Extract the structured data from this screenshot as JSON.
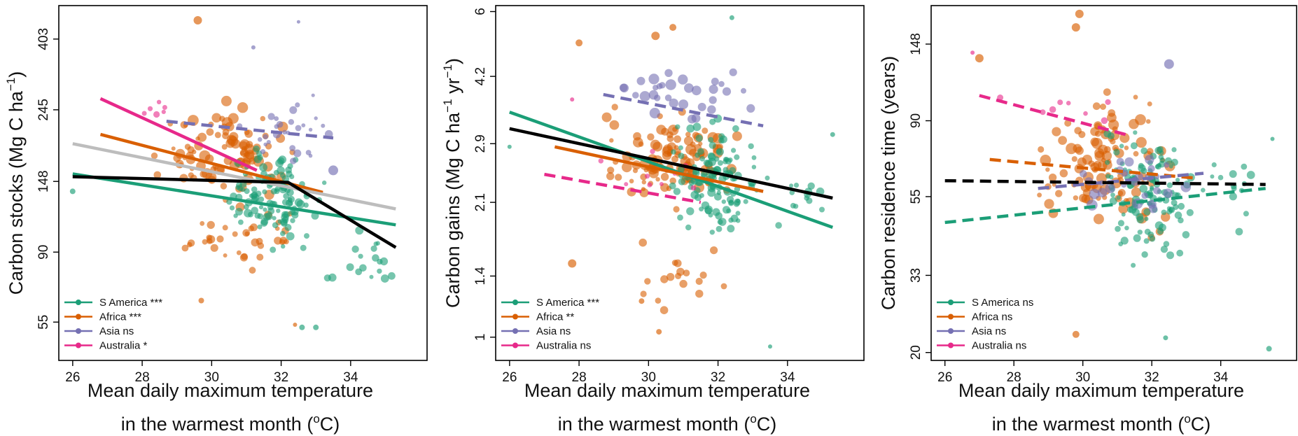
{
  "colors": {
    "S America": "#1b9e77",
    "Africa": "#d95f02",
    "Asia": "#7570b3",
    "Australia": "#e7298a",
    "pantropical": "#000000",
    "pantropical_linear": "#bdbdbd"
  },
  "chart_data": [
    {
      "type": "scatter",
      "ylabel_main": "Carbon stocks (Mg C ha",
      "ylabel_sup": "−1",
      "ylabel_tail": ")",
      "xlabel_line1": "Mean daily maximum temperature",
      "xlabel_line2_pre": "in the warmest month (",
      "xlabel_line2_sup": "o",
      "xlabel_line2_post": "C)",
      "y_scale": "log",
      "xlim": [
        25.6,
        36.2
      ],
      "ylim": [
        42,
        510
      ],
      "x_ticks": [
        "26",
        "28",
        "30",
        "32",
        "34"
      ],
      "y_ticks": [
        "55",
        "90",
        "148",
        "245",
        "403"
      ],
      "legend": [
        {
          "region": "S America",
          "label": "S America ***"
        },
        {
          "region": "Africa",
          "label": "Africa ***"
        },
        {
          "region": "Asia",
          "label": "Asia ns"
        },
        {
          "region": "Australia",
          "label": "Australia *"
        }
      ],
      "fits": [
        {
          "region": "S America",
          "style": "solid",
          "points": [
            [
              26,
              156
            ],
            [
              35.3,
              109
            ]
          ]
        },
        {
          "region": "Africa",
          "style": "solid",
          "points": [
            [
              26.8,
              206
            ],
            [
              33.2,
              137
            ]
          ]
        },
        {
          "region": "Asia",
          "style": "dashed",
          "points": [
            [
              28.7,
              226
            ],
            [
              33.5,
              201
            ]
          ]
        },
        {
          "region": "Australia",
          "style": "solid",
          "points": [
            [
              26.8,
              265
            ],
            [
              31.3,
              160
            ]
          ]
        },
        {
          "region": "pantropical_linear",
          "style": "solid",
          "points": [
            [
              26,
              193
            ],
            [
              35.3,
              122
            ]
          ]
        },
        {
          "region": "pantropical",
          "style": "solid",
          "points": [
            [
              26,
              153
            ],
            [
              32.2,
              147
            ],
            [
              35.3,
              93
            ]
          ]
        }
      ],
      "clusters": [
        {
          "region": "Africa",
          "x": [
            28.2,
            32.5
          ],
          "y": [
            120,
            280
          ],
          "n": 95,
          "size": [
            3,
            8
          ]
        },
        {
          "region": "Africa",
          "x": [
            29,
            33
          ],
          "y": [
            75,
            130
          ],
          "n": 35,
          "size": [
            3,
            6
          ]
        },
        {
          "region": "S America",
          "x": [
            30.3,
            33.3
          ],
          "y": [
            85,
            220
          ],
          "n": 120,
          "size": [
            3,
            6
          ]
        },
        {
          "region": "S America",
          "x": [
            33.2,
            35.6
          ],
          "y": [
            65,
            120
          ],
          "n": 18,
          "size": [
            3,
            6
          ]
        },
        {
          "region": "Asia",
          "x": [
            30.5,
            33.8
          ],
          "y": [
            150,
            300
          ],
          "n": 28,
          "size": [
            2.5,
            6
          ]
        },
        {
          "region": "Australia",
          "x": [
            27.2,
            29
          ],
          "y": [
            210,
            280
          ],
          "n": 6,
          "size": [
            3,
            5
          ]
        }
      ],
      "points": [
        {
          "region": "Africa",
          "x": 29.6,
          "y": 460,
          "r": 6
        },
        {
          "region": "Asia",
          "x": 32.5,
          "y": 455,
          "r": 2.5
        },
        {
          "region": "Asia",
          "x": 31.2,
          "y": 380,
          "r": 3
        },
        {
          "region": "S America",
          "x": 26,
          "y": 138,
          "r": 4
        },
        {
          "region": "S America",
          "x": 32.6,
          "y": 53,
          "r": 4
        },
        {
          "region": "S America",
          "x": 33,
          "y": 53,
          "r": 4
        },
        {
          "region": "Africa",
          "x": 32.4,
          "y": 54,
          "r": 3
        },
        {
          "region": "Africa",
          "x": 29.7,
          "y": 64,
          "r": 4
        },
        {
          "region": "Asia",
          "x": 33.5,
          "y": 160,
          "r": 7
        }
      ]
    },
    {
      "type": "scatter",
      "ylabel_main": "Carbon gains (Mg C ha",
      "ylabel_sup": "−1",
      "ylabel_mid": " yr",
      "ylabel_sup2": "−1",
      "ylabel_tail": ")",
      "xlabel_line1": "Mean daily maximum temperature",
      "xlabel_line2_pre": "in the warmest month (",
      "xlabel_line2_sup": "o",
      "xlabel_line2_post": "C)",
      "y_scale": "log",
      "xlim": [
        25.6,
        36.2
      ],
      "ylim": [
        0.88,
        6.2
      ],
      "x_ticks": [
        "26",
        "28",
        "30",
        "32",
        "34"
      ],
      "y_ticks": [
        "1",
        "1.4",
        "2.1",
        "2.9",
        "4.2",
        "6"
      ],
      "legend": [
        {
          "region": "S America",
          "label": "S America ***"
        },
        {
          "region": "Africa",
          "label": "Africa **"
        },
        {
          "region": "Asia",
          "label": "Asia ns"
        },
        {
          "region": "Australia",
          "label": "Australia ns"
        }
      ],
      "fits": [
        {
          "region": "S America",
          "style": "solid",
          "points": [
            [
              26,
              3.45
            ],
            [
              35.3,
              1.83
            ]
          ]
        },
        {
          "region": "Africa",
          "style": "solid",
          "points": [
            [
              27.3,
              2.85
            ],
            [
              33.3,
              2.23
            ]
          ]
        },
        {
          "region": "Asia",
          "style": "dashed",
          "points": [
            [
              28.7,
              3.8
            ],
            [
              33.3,
              3.2
            ]
          ]
        },
        {
          "region": "Australia",
          "style": "dashed",
          "points": [
            [
              27,
              2.45
            ],
            [
              31.5,
              2.1
            ]
          ]
        },
        {
          "region": "pantropical",
          "style": "solid",
          "points": [
            [
              26,
              3.15
            ],
            [
              35.3,
              2.15
            ]
          ]
        }
      ],
      "clusters": [
        {
          "region": "Africa",
          "x": [
            28.3,
            32.8
          ],
          "y": [
            1.9,
            3.8
          ],
          "n": 110,
          "size": [
            3,
            8
          ]
        },
        {
          "region": "Africa",
          "x": [
            29,
            32.5
          ],
          "y": [
            1.05,
            1.9
          ],
          "n": 18,
          "size": [
            4,
            6
          ]
        },
        {
          "region": "S America",
          "x": [
            30.5,
            33.3
          ],
          "y": [
            1.6,
            3.6
          ],
          "n": 120,
          "size": [
            3,
            6
          ]
        },
        {
          "region": "S America",
          "x": [
            33.3,
            35.4
          ],
          "y": [
            1.8,
            2.6
          ],
          "n": 14,
          "size": [
            3,
            6
          ]
        },
        {
          "region": "Asia",
          "x": [
            28.7,
            33.5
          ],
          "y": [
            3.2,
            4.6
          ],
          "n": 32,
          "size": [
            4,
            8
          ]
        },
        {
          "region": "Australia",
          "x": [
            27.3,
            31.5
          ],
          "y": [
            2,
            3.1
          ],
          "n": 10,
          "size": [
            3,
            4
          ]
        }
      ],
      "points": [
        {
          "region": "Africa",
          "x": 28,
          "y": 5.05,
          "r": 5
        },
        {
          "region": "Africa",
          "x": 30.7,
          "y": 5.5,
          "r": 5
        },
        {
          "region": "Africa",
          "x": 30.2,
          "y": 5.25,
          "r": 6
        },
        {
          "region": "S America",
          "x": 32.4,
          "y": 5.8,
          "r": 3.5
        },
        {
          "region": "Africa",
          "x": 27.8,
          "y": 1.5,
          "r": 6
        },
        {
          "region": "Africa",
          "x": 30.3,
          "y": 1.03,
          "r": 4
        },
        {
          "region": "Africa",
          "x": 29.8,
          "y": 1.22,
          "r": 4
        },
        {
          "region": "S America",
          "x": 35.3,
          "y": 3.05,
          "r": 3.5
        },
        {
          "region": "S America",
          "x": 26,
          "y": 2.85,
          "r": 3
        },
        {
          "region": "S America",
          "x": 33.5,
          "y": 0.95,
          "r": 3
        },
        {
          "region": "Australia",
          "x": 27.8,
          "y": 3.7,
          "r": 3
        }
      ]
    },
    {
      "type": "scatter",
      "ylabel_main": "Carbon residence time (years)",
      "xlabel_line1": "Mean daily maximum temperature",
      "xlabel_line2_pre": "in the warmest month (",
      "xlabel_line2_sup": "o",
      "xlabel_line2_post": "C)",
      "y_scale": "log",
      "xlim": [
        25.6,
        36.2
      ],
      "ylim": [
        19,
        190
      ],
      "x_ticks": [
        "26",
        "28",
        "30",
        "32",
        "34"
      ],
      "y_ticks": [
        "20",
        "33",
        "55",
        "90",
        "148"
      ],
      "legend": [
        {
          "region": "S America",
          "label": "S America ns"
        },
        {
          "region": "Africa",
          "label": "Africa ns"
        },
        {
          "region": "Asia",
          "label": "Asia ns"
        },
        {
          "region": "Australia",
          "label": "Australia ns"
        }
      ],
      "fits": [
        {
          "region": "S America",
          "style": "dashed",
          "points": [
            [
              26,
              46.5
            ],
            [
              35.3,
              58
            ]
          ]
        },
        {
          "region": "Africa",
          "style": "dashed",
          "points": [
            [
              27.3,
              70
            ],
            [
              33.3,
              62
            ]
          ]
        },
        {
          "region": "Asia",
          "style": "dashed",
          "points": [
            [
              28.7,
              58
            ],
            [
              33.5,
              64
            ]
          ]
        },
        {
          "region": "Australia",
          "style": "dashed",
          "points": [
            [
              27,
              106
            ],
            [
              31.3,
              82
            ]
          ]
        },
        {
          "region": "pantropical",
          "style": "dashed",
          "points": [
            [
              26,
              61
            ],
            [
              35.3,
              59.5
            ]
          ]
        }
      ],
      "clusters": [
        {
          "region": "Africa",
          "x": [
            28.3,
            32.8
          ],
          "y": [
            38,
            120
          ],
          "n": 110,
          "size": [
            3,
            8
          ]
        },
        {
          "region": "S America",
          "x": [
            30.5,
            33.3
          ],
          "y": [
            33,
            95
          ],
          "n": 120,
          "size": [
            3,
            6
          ]
        },
        {
          "region": "S America",
          "x": [
            33.3,
            35.6
          ],
          "y": [
            40,
            80
          ],
          "n": 14,
          "size": [
            3,
            6
          ]
        },
        {
          "region": "Asia",
          "x": [
            29.5,
            33.8
          ],
          "y": [
            45,
            85
          ],
          "n": 26,
          "size": [
            4,
            8
          ]
        },
        {
          "region": "Australia",
          "x": [
            27,
            31.5
          ],
          "y": [
            82,
            115
          ],
          "n": 8,
          "size": [
            3,
            5
          ]
        }
      ],
      "points": [
        {
          "region": "Africa",
          "x": 29.9,
          "y": 180,
          "r": 6
        },
        {
          "region": "Africa",
          "x": 29.8,
          "y": 165,
          "r": 6
        },
        {
          "region": "Africa",
          "x": 27,
          "y": 135,
          "r": 6
        },
        {
          "region": "Asia",
          "x": 32.5,
          "y": 130,
          "r": 7
        },
        {
          "region": "Australia",
          "x": 26.8,
          "y": 140,
          "r": 3
        },
        {
          "region": "S America",
          "x": 32.4,
          "y": 22,
          "r": 3.5
        },
        {
          "region": "S America",
          "x": 35.4,
          "y": 20.5,
          "r": 4
        },
        {
          "region": "Africa",
          "x": 29.8,
          "y": 22.5,
          "r": 5
        },
        {
          "region": "S America",
          "x": 35.5,
          "y": 80,
          "r": 3
        }
      ]
    }
  ]
}
